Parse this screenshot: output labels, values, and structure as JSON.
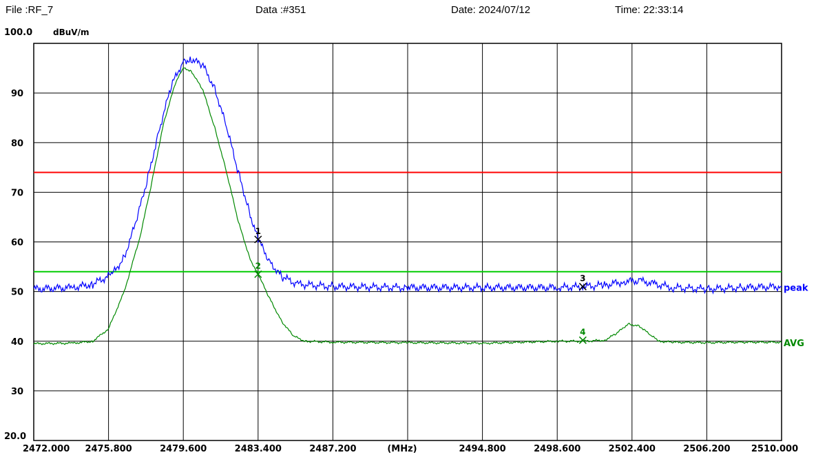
{
  "header": {
    "file": "File :RF_7",
    "data": "Data :#351",
    "date": "Date: 2024/07/12",
    "time": "Time: 22:33:14"
  },
  "chart_data": {
    "type": "line",
    "title": "",
    "ylabel": "dBuV/m",
    "xunit": "(MHz)",
    "xlim": [
      2472.0,
      2510.0
    ],
    "ylim": [
      20.0,
      100.0
    ],
    "grid": true,
    "x_ticks": [
      "2472.000",
      "2475.800",
      "2479.600",
      "2483.400",
      "2487.200",
      "",
      "2494.800",
      "2498.600",
      "2502.400",
      "2506.200",
      "2510.000"
    ],
    "y_ticks": [
      "100.0",
      "90",
      "80",
      "70",
      "60",
      "50",
      "40",
      "30",
      "20.0"
    ],
    "limit_lines": [
      {
        "value": 74,
        "color": "#ff0000"
      },
      {
        "value": 54,
        "color": "#00cc00"
      }
    ],
    "series": [
      {
        "name": "peak",
        "color": "#0000ff",
        "x": [
          2472.0,
          2474.0,
          2475.0,
          2476.0,
          2476.6,
          2477.2,
          2477.8,
          2478.4,
          2479.0,
          2479.6,
          2480.0,
          2480.6,
          2481.2,
          2481.8,
          2482.4,
          2483.0,
          2483.4,
          2484.0,
          2484.6,
          2485.4,
          2487.2,
          2491.0,
          2495.0,
          2498.6,
          2500.0,
          2501.0,
          2502.0,
          2502.8,
          2503.6,
          2504.5,
          2506.2,
          2508.0,
          2510.0
        ],
        "y": [
          50.5,
          50.8,
          51.5,
          53.5,
          57.0,
          64.0,
          73.0,
          83.0,
          91.5,
          96.5,
          96.8,
          95.5,
          91.0,
          83.0,
          74.0,
          65.5,
          60.5,
          56.0,
          53.0,
          51.5,
          51.0,
          50.8,
          50.8,
          50.8,
          51.0,
          51.3,
          52.0,
          52.2,
          51.5,
          50.8,
          50.5,
          50.8,
          51.0
        ]
      },
      {
        "name": "AVG",
        "color": "#008800",
        "x": [
          2472.0,
          2474.0,
          2475.0,
          2475.8,
          2476.6,
          2477.4,
          2478.0,
          2478.6,
          2479.2,
          2479.6,
          2480.0,
          2480.6,
          2481.2,
          2481.8,
          2482.4,
          2483.0,
          2483.4,
          2484.0,
          2484.6,
          2485.2,
          2485.8,
          2487.2,
          2491.0,
          2495.0,
          2498.6,
          2500.0,
          2501.0,
          2501.6,
          2502.2,
          2502.8,
          2503.4,
          2503.8,
          2504.4,
          2506.2,
          2508.0,
          2510.0
        ],
        "y": [
          39.5,
          39.6,
          40.0,
          42.5,
          50.0,
          61.0,
          72.0,
          84.0,
          92.0,
          95.0,
          94.5,
          90.5,
          83.0,
          74.0,
          64.0,
          56.5,
          53.5,
          48.5,
          44.0,
          41.0,
          40.0,
          39.8,
          39.7,
          39.6,
          40.0,
          40.0,
          40.2,
          41.5,
          43.5,
          43.0,
          41.0,
          40.0,
          39.8,
          39.7,
          39.8,
          39.8
        ]
      }
    ],
    "markers": [
      {
        "label": "1",
        "x": 2483.4,
        "y": 60.5,
        "color": "#000000"
      },
      {
        "label": "2",
        "x": 2483.4,
        "y": 53.5,
        "color": "#008800"
      },
      {
        "label": "3",
        "x": 2499.9,
        "y": 51.0,
        "color": "#000000"
      },
      {
        "label": "4",
        "x": 2499.9,
        "y": 40.2,
        "color": "#008800"
      }
    ]
  }
}
